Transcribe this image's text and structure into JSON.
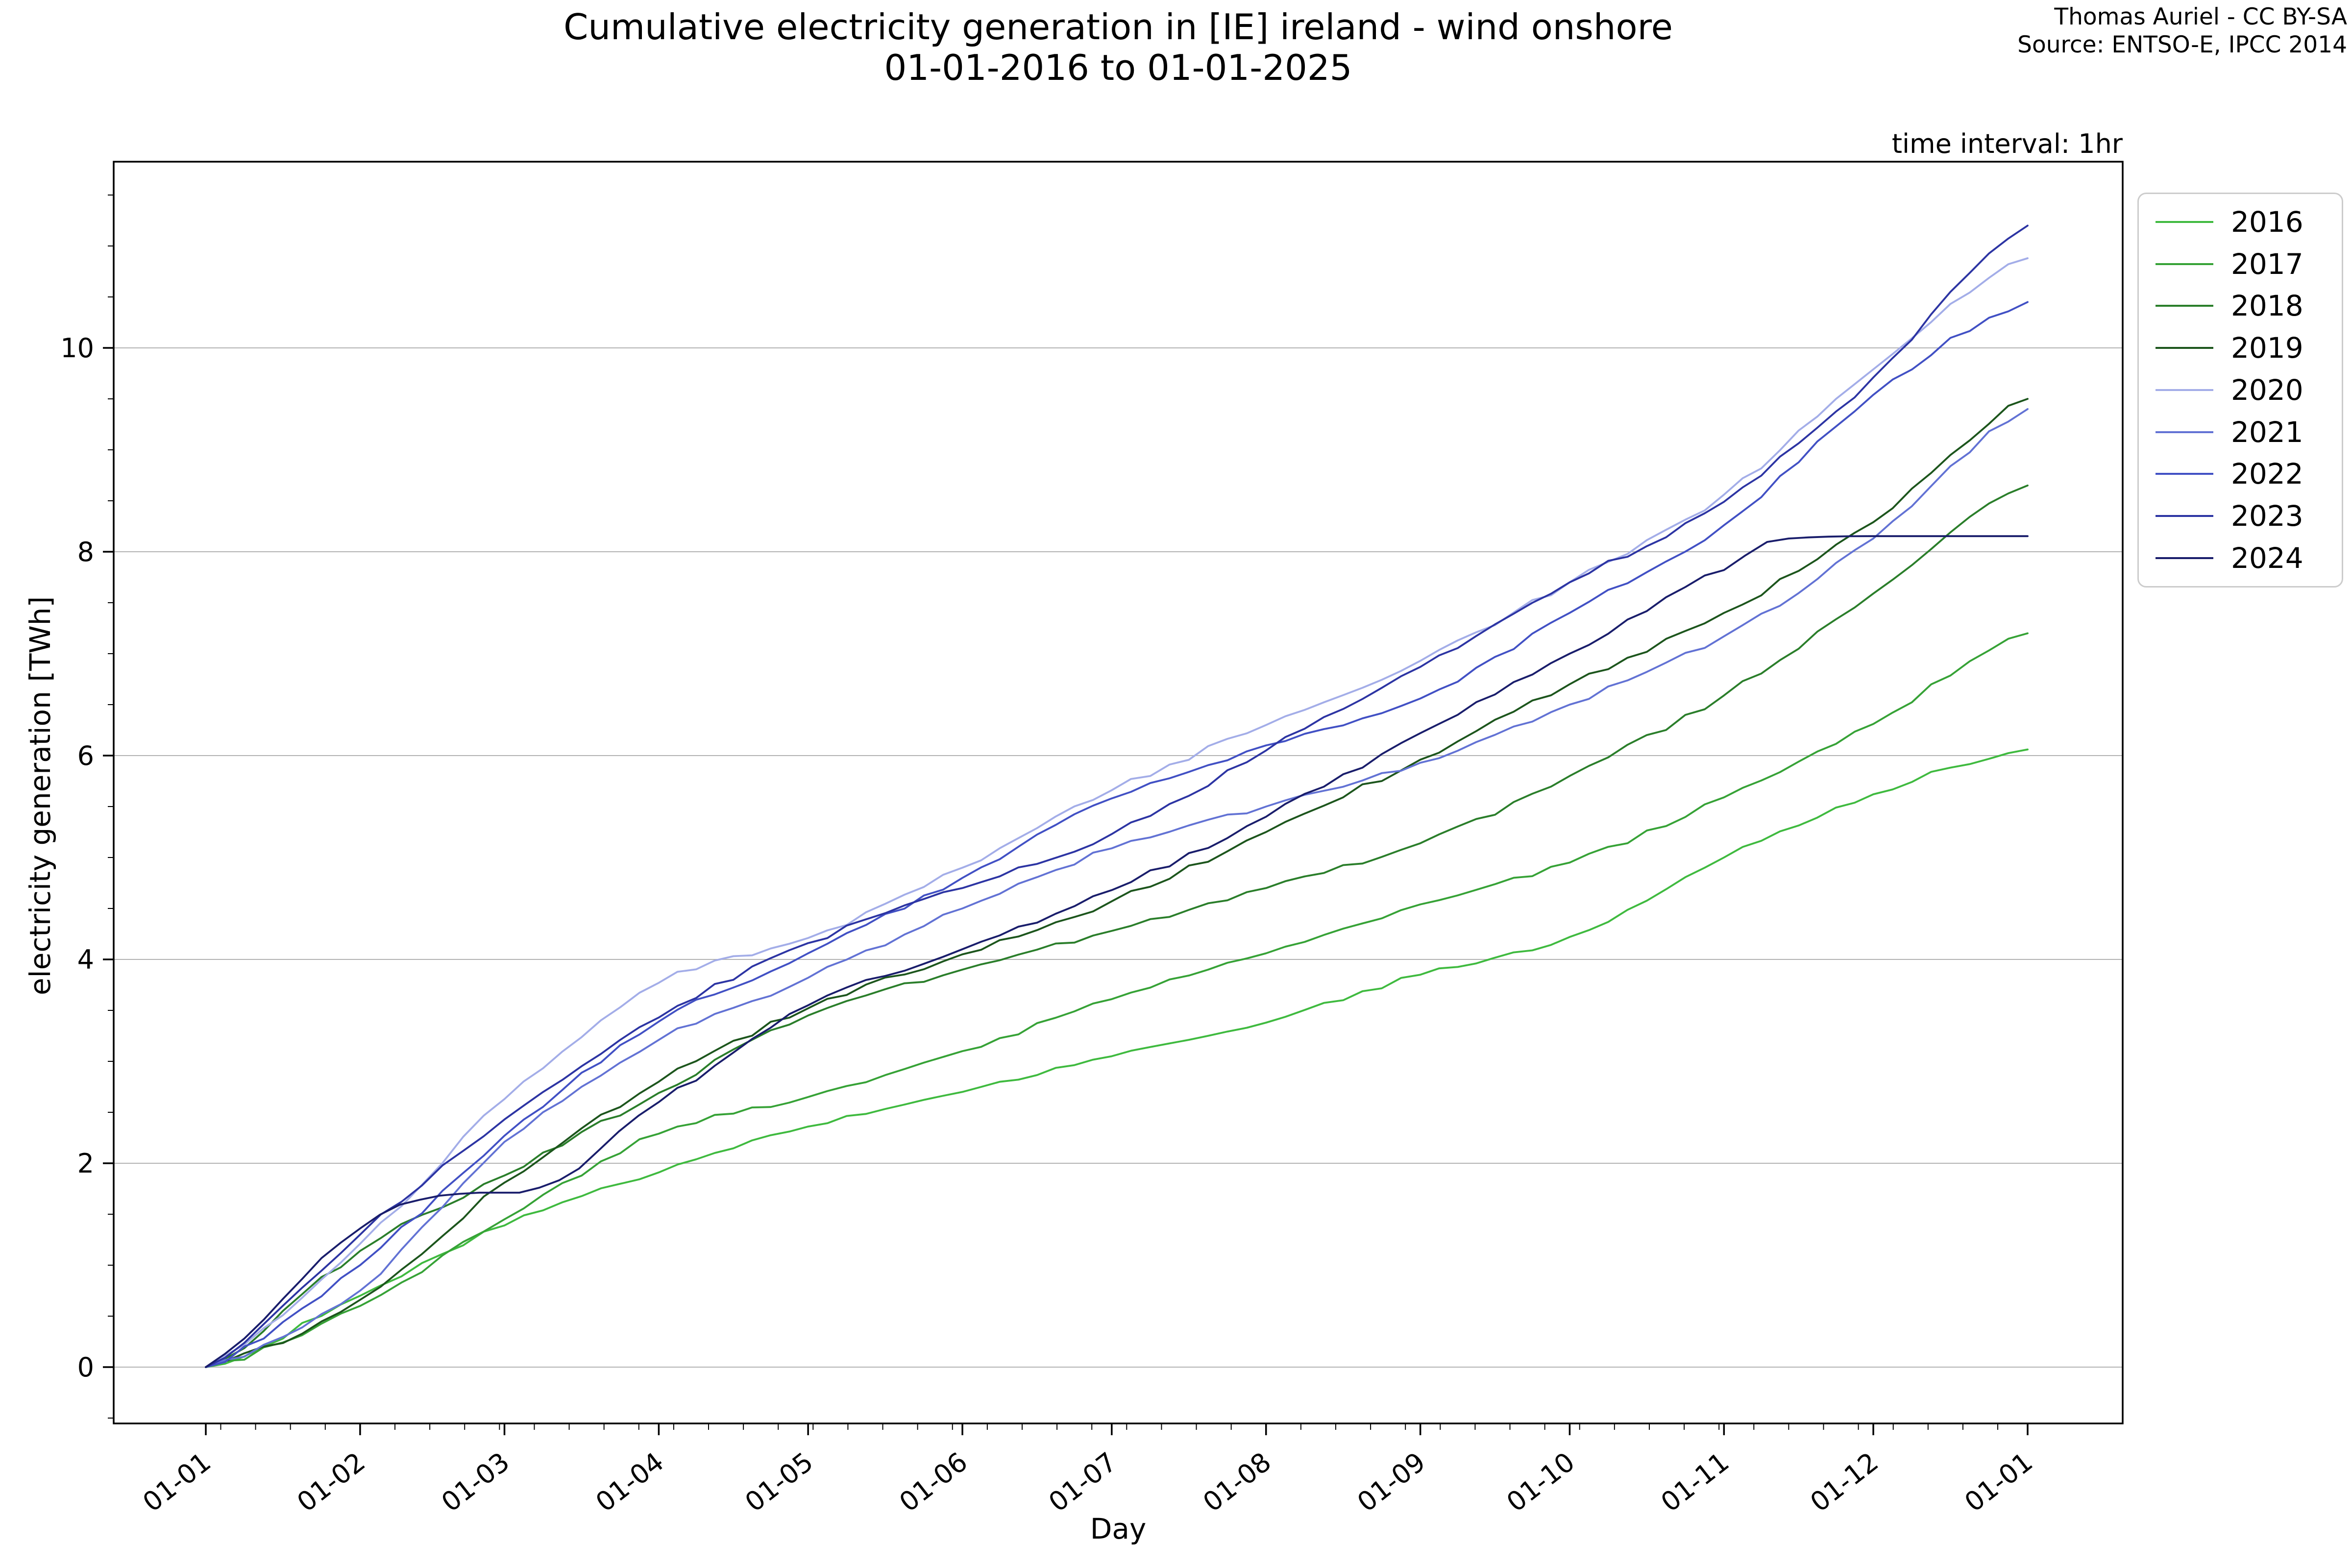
{
  "title": {
    "line1": "Cumulative electricity generation in [IE] ireland - wind onshore",
    "line2": "01-01-2016 to 01-01-2025"
  },
  "attribution": {
    "line1": "Thomas Auriel - CC BY-SA",
    "line2": "Source: ENTSO-E, IPCC 2014"
  },
  "annotation": "time interval: 1hr",
  "axes": {
    "xlabel": "Day",
    "ylabel": "electricity generation [TWh]",
    "ytick_values": [
      0,
      2,
      4,
      6,
      8,
      10
    ],
    "ytick_labels": [
      "0",
      "2",
      "4",
      "6",
      "8",
      "10"
    ],
    "xtick_labels": [
      "01-01",
      "01-02",
      "01-03",
      "01-04",
      "01-05",
      "01-06",
      "01-07",
      "01-08",
      "01-09",
      "01-10",
      "01-11",
      "01-12",
      "01-01"
    ],
    "grid_color": "#b3b3b3"
  },
  "legend": {
    "entries": [
      {
        "label": "2016",
        "color": "#3fba3f"
      },
      {
        "label": "2017",
        "color": "#36a236"
      },
      {
        "label": "2018",
        "color": "#2a7e2a"
      },
      {
        "label": "2019",
        "color": "#1c551c"
      },
      {
        "label": "2020",
        "color": "#a3ade8"
      },
      {
        "label": "2021",
        "color": "#6272d4"
      },
      {
        "label": "2022",
        "color": "#4150c4"
      },
      {
        "label": "2023",
        "color": "#2c34a3"
      },
      {
        "label": "2024",
        "color": "#191d6b"
      }
    ]
  },
  "chart_data": {
    "type": "line",
    "title": "Cumulative electricity generation in [IE] ireland - wind onshore 01-01-2016 to 01-01-2025",
    "xlabel": "Day",
    "ylabel": "electricity generation [TWh]",
    "x_unit": "day-of-year",
    "xtick_days": [
      0,
      31,
      60,
      91,
      121,
      152,
      182,
      213,
      244,
      274,
      305,
      335,
      366
    ],
    "xtick_labels": [
      "01-01",
      "01-02",
      "01-03",
      "01-04",
      "01-05",
      "01-06",
      "01-07",
      "01-08",
      "01-09",
      "01-10",
      "01-11",
      "01-12",
      "01-01"
    ],
    "ylim": [
      -0.55,
      11.83
    ],
    "xlim_days": [
      0,
      366
    ],
    "grid": "horizontal-major",
    "legend_position": "upper right outside",
    "series": [
      {
        "name": "2016",
        "color": "#3fba3f",
        "points": [
          [
            0,
            0
          ],
          [
            31,
            0.7
          ],
          [
            60,
            1.39
          ],
          [
            91,
            1.91
          ],
          [
            121,
            2.36
          ],
          [
            152,
            2.7
          ],
          [
            182,
            3.05
          ],
          [
            213,
            3.38
          ],
          [
            244,
            3.85
          ],
          [
            274,
            4.22
          ],
          [
            305,
            5.0
          ],
          [
            335,
            5.62
          ],
          [
            366,
            6.06
          ]
        ]
      },
      {
        "name": "2017",
        "color": "#36a236",
        "points": [
          [
            0,
            0
          ],
          [
            31,
            0.6
          ],
          [
            60,
            1.45
          ],
          [
            91,
            2.29
          ],
          [
            121,
            2.65
          ],
          [
            152,
            3.1
          ],
          [
            182,
            3.61
          ],
          [
            213,
            4.06
          ],
          [
            244,
            4.54
          ],
          [
            274,
            4.95
          ],
          [
            305,
            5.59
          ],
          [
            335,
            6.31
          ],
          [
            366,
            7.2
          ]
        ]
      },
      {
        "name": "2018",
        "color": "#2a7e2a",
        "points": [
          [
            0,
            0
          ],
          [
            31,
            1.14
          ],
          [
            60,
            1.88
          ],
          [
            91,
            2.69
          ],
          [
            121,
            3.45
          ],
          [
            152,
            3.9
          ],
          [
            182,
            4.28
          ],
          [
            213,
            4.7
          ],
          [
            244,
            5.14
          ],
          [
            274,
            5.8
          ],
          [
            305,
            6.59
          ],
          [
            335,
            7.59
          ],
          [
            366,
            8.65
          ]
        ]
      },
      {
        "name": "2019",
        "color": "#1c551c",
        "points": [
          [
            0,
            0
          ],
          [
            31,
            0.66
          ],
          [
            60,
            1.81
          ],
          [
            91,
            2.8
          ],
          [
            121,
            3.52
          ],
          [
            152,
            4.05
          ],
          [
            182,
            4.57
          ],
          [
            213,
            5.25
          ],
          [
            244,
            5.96
          ],
          [
            274,
            6.7
          ],
          [
            305,
            7.4
          ],
          [
            335,
            8.29
          ],
          [
            366,
            9.5
          ]
        ]
      },
      {
        "name": "2020",
        "color": "#a3ade8",
        "points": [
          [
            0,
            0
          ],
          [
            31,
            1.21
          ],
          [
            60,
            2.63
          ],
          [
            91,
            3.77
          ],
          [
            121,
            4.21
          ],
          [
            152,
            4.9
          ],
          [
            182,
            5.66
          ],
          [
            213,
            6.3
          ],
          [
            244,
            6.93
          ],
          [
            274,
            7.7
          ],
          [
            305,
            8.56
          ],
          [
            335,
            9.79
          ],
          [
            366,
            10.88
          ]
        ]
      },
      {
        "name": "2021",
        "color": "#6272d4",
        "points": [
          [
            0,
            0
          ],
          [
            31,
            0.75
          ],
          [
            60,
            2.21
          ],
          [
            91,
            3.21
          ],
          [
            121,
            3.82
          ],
          [
            152,
            4.5
          ],
          [
            182,
            5.09
          ],
          [
            213,
            5.5
          ],
          [
            244,
            5.93
          ],
          [
            274,
            6.5
          ],
          [
            305,
            7.17
          ],
          [
            335,
            8.13
          ],
          [
            366,
            9.4
          ]
        ]
      },
      {
        "name": "2022",
        "color": "#4150c4",
        "points": [
          [
            0,
            0
          ],
          [
            31,
            1.0
          ],
          [
            60,
            2.27
          ],
          [
            91,
            3.39
          ],
          [
            121,
            4.06
          ],
          [
            152,
            4.8
          ],
          [
            182,
            5.58
          ],
          [
            213,
            6.1
          ],
          [
            244,
            6.56
          ],
          [
            274,
            7.4
          ],
          [
            305,
            8.26
          ],
          [
            335,
            9.54
          ],
          [
            366,
            10.45
          ]
        ]
      },
      {
        "name": "2023",
        "color": "#2c34a3",
        "points": [
          [
            0,
            0
          ],
          [
            31,
            1.3
          ],
          [
            60,
            2.43
          ],
          [
            91,
            3.43
          ],
          [
            121,
            4.16
          ],
          [
            152,
            4.7
          ],
          [
            182,
            5.23
          ],
          [
            213,
            6.05
          ],
          [
            244,
            6.87
          ],
          [
            274,
            7.7
          ],
          [
            305,
            8.49
          ],
          [
            335,
            9.71
          ],
          [
            366,
            11.2
          ]
        ]
      },
      {
        "name": "2024",
        "color": "#191d6b",
        "points": [
          [
            0,
            0
          ],
          [
            31,
            1.36
          ],
          [
            51,
            1.7
          ],
          [
            67,
            1.76
          ],
          [
            91,
            2.6
          ],
          [
            121,
            3.55
          ],
          [
            152,
            4.1
          ],
          [
            182,
            4.68
          ],
          [
            213,
            5.4
          ],
          [
            244,
            6.22
          ],
          [
            274,
            7.0
          ],
          [
            305,
            7.82
          ],
          [
            318,
            8.13
          ],
          [
            366,
            8.13
          ]
        ]
      }
    ]
  }
}
